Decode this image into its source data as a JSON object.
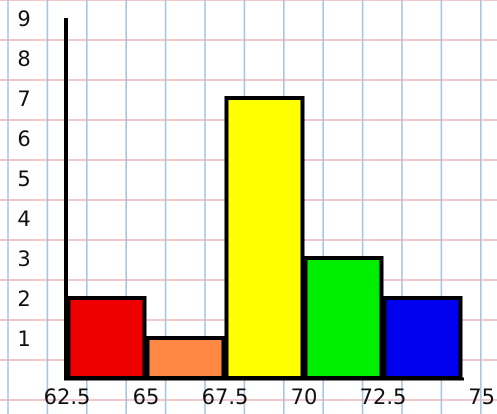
{
  "chart_data": {
    "type": "bar",
    "title": "",
    "xlabel": "",
    "ylabel": "",
    "bins": [
      {
        "start": 62.5,
        "end": 65,
        "value": 2,
        "color": "#ee0000"
      },
      {
        "start": 65,
        "end": 67.5,
        "value": 1,
        "color": "#ff8844"
      },
      {
        "start": 67.5,
        "end": 70,
        "value": 7,
        "color": "#ffff00"
      },
      {
        "start": 70,
        "end": 72.5,
        "value": 3,
        "color": "#00ee00"
      },
      {
        "start": 72.5,
        "end": 75,
        "value": 2,
        "color": "#0000ee"
      }
    ],
    "xticks": [
      "62.5",
      "65",
      "67.5",
      "70",
      "72.5",
      "75"
    ],
    "xtick_values": [
      62.5,
      65,
      67.5,
      70,
      72.5,
      75
    ],
    "yticks": [
      "1",
      "2",
      "3",
      "4",
      "5",
      "6",
      "7",
      "8",
      "9"
    ],
    "xlim": [
      62.5,
      75
    ],
    "ylim": [
      0,
      9
    ],
    "grid": true,
    "background": "graph paper",
    "grid_colors": {
      "vertical": "#aac4e6",
      "horizontal": "#e4a9ad"
    },
    "bar_outline_color": "#000000"
  }
}
